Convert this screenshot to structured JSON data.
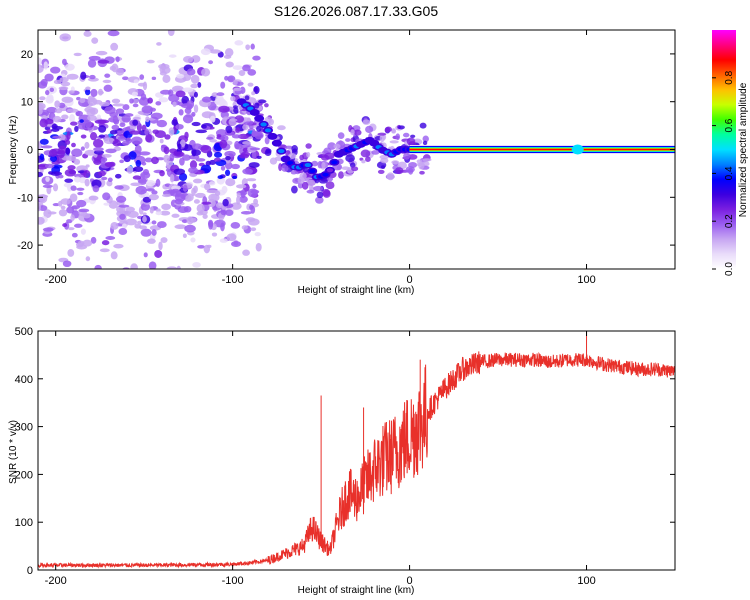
{
  "title": "S126.2026.087.17.33.G05",
  "colors": {
    "snr_line": "#e8302a",
    "frame": "#000000",
    "colormap": [
      "#ffffff",
      "#e9dcfa",
      "#c7a6f2",
      "#9a5df0",
      "#7a1fe0",
      "#3b00e0",
      "#0000ff",
      "#0080ff",
      "#00e0ff",
      "#00ffa0",
      "#40ff00",
      "#c8ff00",
      "#ffc000",
      "#ff6000",
      "#ff0000",
      "#ff0080",
      "#ff00ff"
    ]
  },
  "chart_data": [
    {
      "type": "heatmap",
      "name": "spectrogram",
      "xlabel": "Height of straight line (km)",
      "ylabel": "Frequency (Hz)",
      "xlim": [
        -210,
        150
      ],
      "ylim": [
        -25,
        25
      ],
      "xticks": [
        "-200",
        "-100",
        "0",
        "100"
      ],
      "yticks": [
        "20",
        "10",
        "0",
        "-10",
        "-20"
      ],
      "ridge": {
        "x": [
          -95,
          -88,
          -82,
          -76,
          -70,
          -64,
          -58,
          -52,
          -46,
          -40,
          -34,
          -28,
          -22,
          -16,
          -10,
          -5,
          0,
          150
        ],
        "frequency": [
          10,
          8,
          5,
          2,
          -2,
          -4,
          -3,
          -6,
          -5,
          -1,
          0,
          1,
          2,
          0,
          -1,
          0,
          0,
          0
        ]
      },
      "colorbar": {
        "label": "Normalized spectral amplitude",
        "range": [
          0.0,
          1.0
        ],
        "ticks": [
          "0.0",
          "0.2",
          "0.4",
          "0.6",
          "0.8"
        ]
      }
    },
    {
      "type": "line",
      "name": "snr",
      "xlabel": "Height of straight line (km)",
      "ylabel": "SNR (10 * v/v)",
      "xlim": [
        -210,
        150
      ],
      "ylim": [
        0,
        500
      ],
      "xticks": [
        "-200",
        "-100",
        "0",
        "100"
      ],
      "yticks": [
        "0",
        "100",
        "200",
        "300",
        "400",
        "500"
      ],
      "x": [
        -210,
        -180,
        -150,
        -120,
        -100,
        -90,
        -80,
        -70,
        -60,
        -55,
        -50,
        -45,
        -40,
        -35,
        -30,
        -25,
        -20,
        -15,
        -10,
        -5,
        0,
        5,
        10,
        20,
        30,
        40,
        50,
        60,
        70,
        80,
        90,
        100,
        110,
        120,
        130,
        140,
        150
      ],
      "y": [
        10,
        10,
        10,
        11,
        12,
        15,
        20,
        35,
        50,
        90,
        60,
        40,
        110,
        160,
        150,
        180,
        210,
        230,
        240,
        260,
        280,
        300,
        330,
        380,
        420,
        435,
        440,
        440,
        440,
        435,
        440,
        440,
        430,
        425,
        420,
        420,
        415
      ],
      "spikes": [
        {
          "x": -50,
          "y": 365
        },
        {
          "x": -26,
          "y": 340
        },
        {
          "x": 6,
          "y": 440
        },
        {
          "x": 100,
          "y": 500
        }
      ]
    }
  ]
}
